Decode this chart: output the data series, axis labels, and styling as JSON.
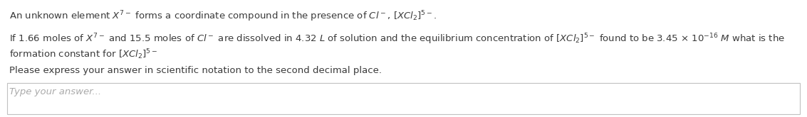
{
  "line1": "An unknown element $X^{7-}$ forms a coordinate compound in the presence of $Cl^-$, $[XCl_2]^{5-}$.",
  "line2a": "If 1.66 moles of $X^{7-}$ and 15.5 moles of $Cl^-$ are dissolved in 4.32 $L$ of solution and the equilibrium concentration of $[XCl_2]^{5-}$ found to be 3.45 $\\times$ 10$^{-16}$ $M$ what is the",
  "line2b": "formation constant for $[XCl_2]^{5-}$",
  "line3": "Please express your answer in scientific notation to the second decimal place.",
  "line4": "Type your answer...",
  "bg_color": "#ffffff",
  "text_color": "#3a3a3a",
  "box_edge_color": "#c0c0c0",
  "font_size": 9.5,
  "small_font_size": 9.5,
  "placeholder_color": "#aaaaaa",
  "fig_width": 11.33,
  "fig_height": 1.65,
  "dpi": 100
}
